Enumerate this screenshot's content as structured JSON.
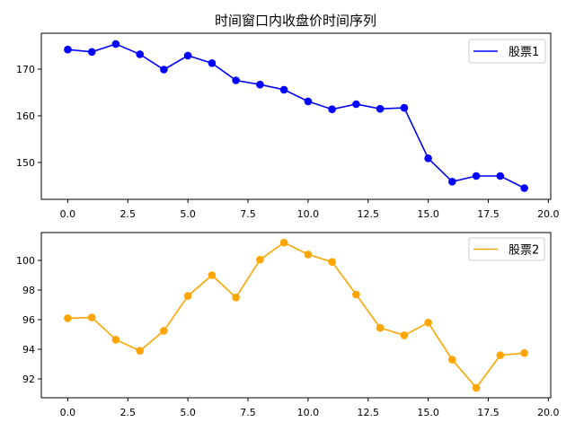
{
  "figure": {
    "title": "时间窗口内收盘价时间序列"
  },
  "chart_data": [
    {
      "type": "line",
      "title": "时间窗口内收盘价时间序列",
      "xlabel": "",
      "ylabel": "",
      "x": [
        0,
        1,
        2,
        3,
        4,
        5,
        6,
        7,
        8,
        9,
        10,
        11,
        12,
        13,
        14,
        15,
        16,
        17,
        18,
        19
      ],
      "series": [
        {
          "name": "股票1",
          "color": "#0000ff",
          "marker": "o",
          "values": [
            174.2,
            173.7,
            175.4,
            173.2,
            169.9,
            172.9,
            171.3,
            167.6,
            166.7,
            165.6,
            163.1,
            161.4,
            162.5,
            161.5,
            161.7,
            150.9,
            145.9,
            147.1,
            147.1,
            144.5
          ]
        }
      ],
      "xlim": [
        -1.1,
        20.1
      ],
      "ylim": [
        142.1,
        177.7
      ],
      "xticks": [
        0.0,
        2.5,
        5.0,
        7.5,
        10.0,
        12.5,
        15.0,
        17.5,
        20.0
      ],
      "xtick_labels": [
        "0.0",
        "2.5",
        "5.0",
        "7.5",
        "10.0",
        "12.5",
        "15.0",
        "17.5",
        "20.0"
      ],
      "yticks": [
        150,
        160,
        170
      ],
      "ytick_labels": [
        "150",
        "160",
        "170"
      ],
      "grid": false,
      "legend_position": "upper right"
    },
    {
      "type": "line",
      "title": "",
      "xlabel": "",
      "ylabel": "",
      "x": [
        0,
        1,
        2,
        3,
        4,
        5,
        6,
        7,
        8,
        9,
        10,
        11,
        12,
        13,
        14,
        15,
        16,
        17,
        18,
        19
      ],
      "series": [
        {
          "name": "股票2",
          "color": "#ffa500",
          "marker": "o",
          "values": [
            96.1,
            96.15,
            94.65,
            93.9,
            95.25,
            97.6,
            99.0,
            97.5,
            100.05,
            101.2,
            100.4,
            99.9,
            97.7,
            95.45,
            94.95,
            95.8,
            93.3,
            91.4,
            93.6,
            93.75
          ]
        }
      ],
      "xlim": [
        -1.1,
        20.1
      ],
      "ylim": [
        90.73,
        101.88
      ],
      "xticks": [
        0.0,
        2.5,
        5.0,
        7.5,
        10.0,
        12.5,
        15.0,
        17.5,
        20.0
      ],
      "xtick_labels": [
        "0.0",
        "2.5",
        "5.0",
        "7.5",
        "10.0",
        "12.5",
        "15.0",
        "17.5",
        "20.0"
      ],
      "yticks": [
        92,
        94,
        96,
        98,
        100
      ],
      "ytick_labels": [
        "92",
        "94",
        "96",
        "98",
        "100"
      ],
      "grid": false,
      "legend_position": "upper right"
    }
  ]
}
